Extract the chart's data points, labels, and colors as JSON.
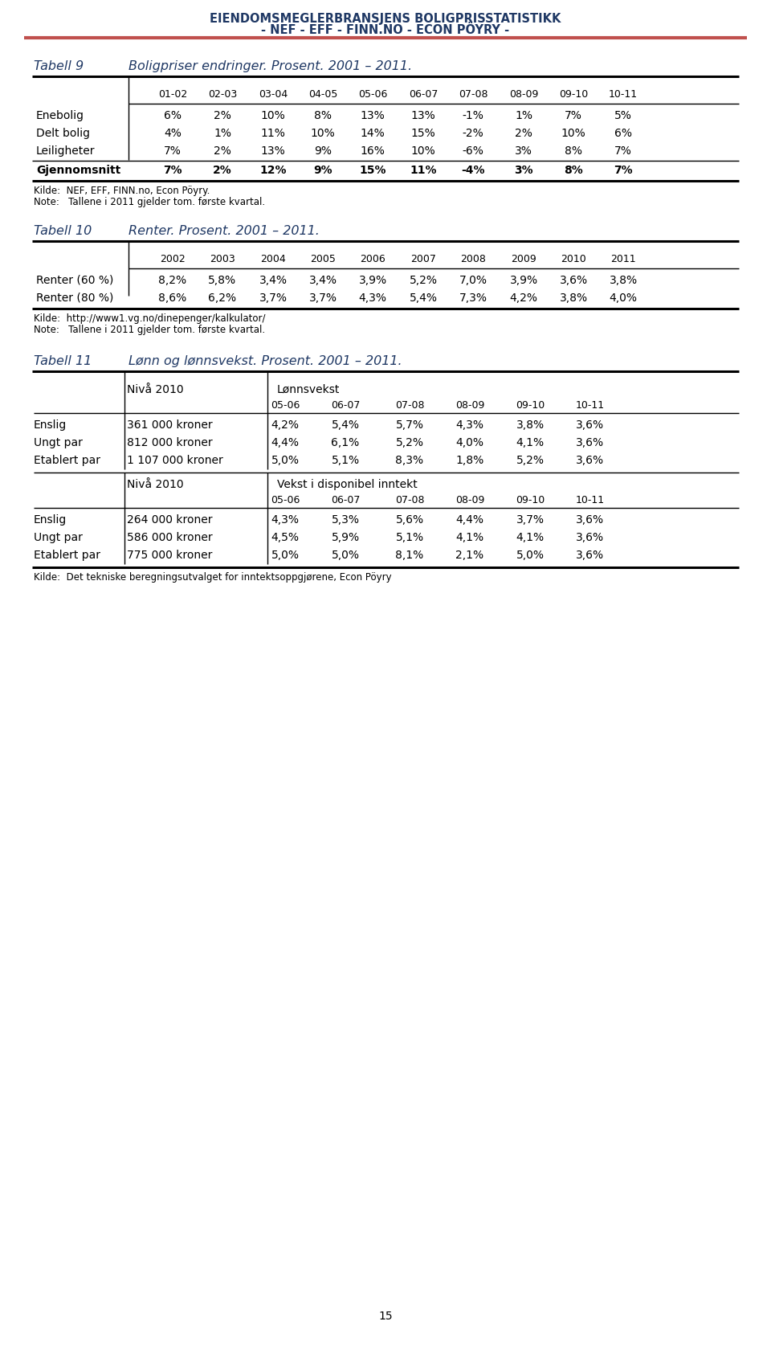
{
  "header_line1": "EIENDOMSMEGLERBRANSJENS BOLIGPRISSTATISTIKK",
  "header_line2": "- NEF - EFF - FINN.NO - ECON PÖYRY -",
  "header_color": "#1F3864",
  "orange_line_color": "#C0504D",
  "tabell9_label": "Tabell 9",
  "tabell9_title": "Boligpriser endringer. Prosent. 2001 – 2011.",
  "t9_cols": [
    "01-02",
    "02-03",
    "03-04",
    "04-05",
    "05-06",
    "06-07",
    "07-08",
    "08-09",
    "09-10",
    "10-11"
  ],
  "t9_rows": [
    {
      "label": "Enebolig",
      "values": [
        "6%",
        "2%",
        "10%",
        "8%",
        "13%",
        "13%",
        "-1%",
        "1%",
        "7%",
        "5%"
      ]
    },
    {
      "label": "Delt bolig",
      "values": [
        "4%",
        "1%",
        "11%",
        "10%",
        "14%",
        "15%",
        "-2%",
        "2%",
        "10%",
        "6%"
      ]
    },
    {
      "label": "Leiligheter",
      "values": [
        "7%",
        "2%",
        "13%",
        "9%",
        "16%",
        "10%",
        "-6%",
        "3%",
        "8%",
        "7%"
      ]
    },
    {
      "label": "Gjennomsnitt",
      "values": [
        "7%",
        "2%",
        "12%",
        "9%",
        "15%",
        "11%",
        "-4%",
        "3%",
        "8%",
        "7%"
      ]
    }
  ],
  "t9_kilde": "Kilde:  NEF, EFF, FINN.no, Econ Pöyry.",
  "t9_note": "Note:   Tallene i 2011 gjelder tom. første kvartal.",
  "tabell10_label": "Tabell 10",
  "tabell10_title": "Renter. Prosent. 2001 – 2011.",
  "t10_cols": [
    "2002",
    "2003",
    "2004",
    "2005",
    "2006",
    "2007",
    "2008",
    "2009",
    "2010",
    "2011"
  ],
  "t10_rows": [
    {
      "label": "Renter (60 %)",
      "values": [
        "8,2%",
        "5,8%",
        "3,4%",
        "3,4%",
        "3,9%",
        "5,2%",
        "7,0%",
        "3,9%",
        "3,6%",
        "3,8%"
      ]
    },
    {
      "label": "Renter (80 %)",
      "values": [
        "8,6%",
        "6,2%",
        "3,7%",
        "3,7%",
        "4,3%",
        "5,4%",
        "7,3%",
        "4,2%",
        "3,8%",
        "4,0%"
      ]
    }
  ],
  "t10_kilde_prefix": "Kilde:  ",
  "t10_kilde_url": "http://www1.vg.no/dinepenger/kalkulator/",
  "t10_note": "Note:   Tallene i 2011 gjelder tom. første kvartal.",
  "tabell11_label": "Tabell 11",
  "tabell11_title": "Lønn og lønnsvekst. Prosent. 2001 – 2011.",
  "t11_subcols": [
    "05-06",
    "06-07",
    "07-08",
    "08-09",
    "09-10",
    "10-11"
  ],
  "t11_niva_label": "Nivå 2010",
  "t11_lonnsvekst_header": "Lønnsvekst",
  "t11_vekst_header": "Vekst i disponibel inntekt",
  "t11_lonnsvekst_rows": [
    {
      "label": "Enslig",
      "niva": "361 000 kroner",
      "values": [
        "4,2%",
        "5,4%",
        "5,7%",
        "4,3%",
        "3,8%",
        "3,6%"
      ]
    },
    {
      "label": "Ungt par",
      "niva": "812 000 kroner",
      "values": [
        "4,4%",
        "6,1%",
        "5,2%",
        "4,0%",
        "4,1%",
        "3,6%"
      ]
    },
    {
      "label": "Etablert par",
      "niva": "1 107 000 kroner",
      "values": [
        "5,0%",
        "5,1%",
        "8,3%",
        "1,8%",
        "5,2%",
        "3,6%"
      ]
    }
  ],
  "t11_vekst_rows": [
    {
      "label": "Enslig",
      "niva": "264 000 kroner",
      "values": [
        "4,3%",
        "5,3%",
        "5,6%",
        "4,4%",
        "3,7%",
        "3,6%"
      ]
    },
    {
      "label": "Ungt par",
      "niva": "586 000 kroner",
      "values": [
        "4,5%",
        "5,9%",
        "5,1%",
        "4,1%",
        "4,1%",
        "3,6%"
      ]
    },
    {
      "label": "Etablert par",
      "niva": "775 000 kroner",
      "values": [
        "5,0%",
        "5,0%",
        "8,1%",
        "2,1%",
        "5,0%",
        "3,6%"
      ]
    }
  ],
  "t11_kilde": "Kilde:  Det tekniske beregningsutvalget for inntektsoppgjørene, Econ Pöyry",
  "page_number": "15"
}
